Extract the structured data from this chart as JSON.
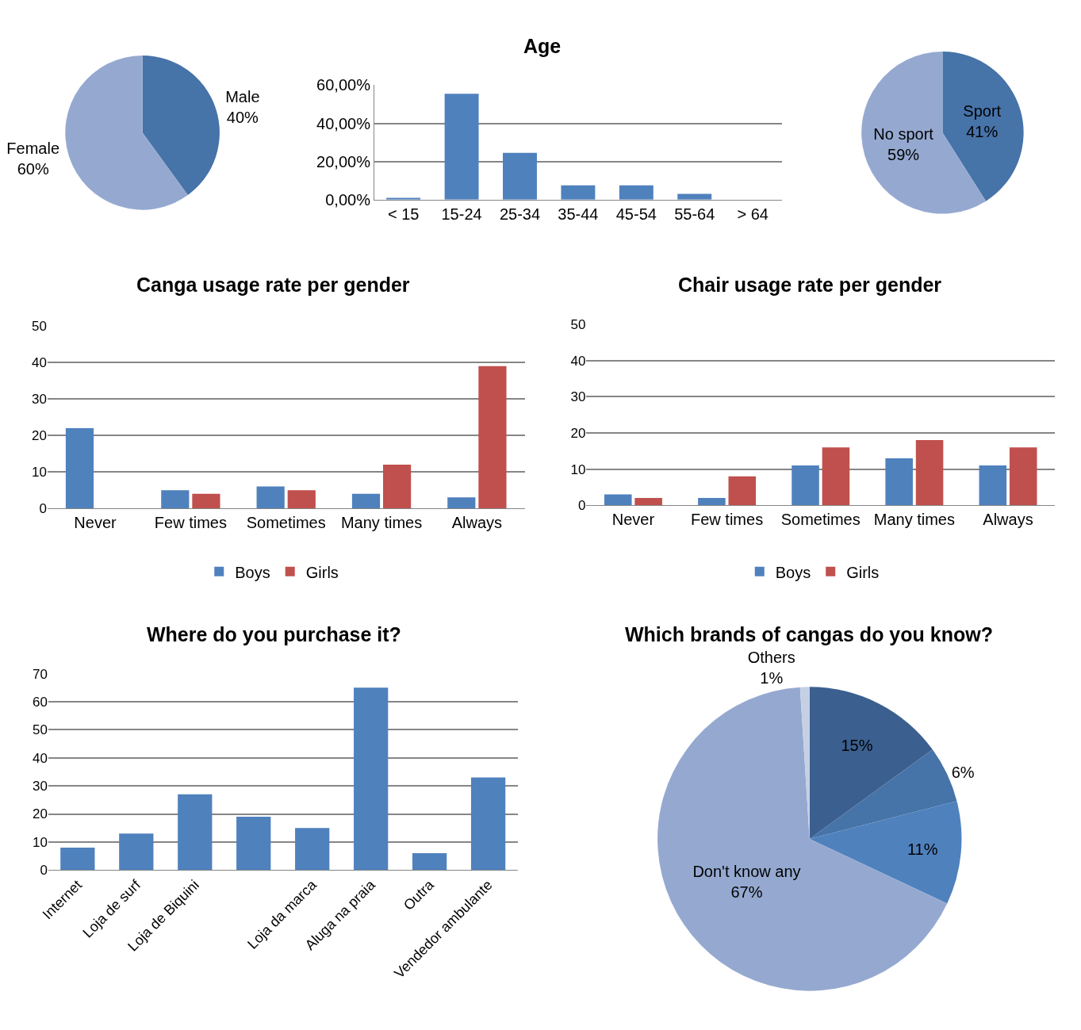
{
  "chart_data": [
    {
      "type": "pie",
      "categories": [
        "Male",
        "Female"
      ],
      "values": [
        40,
        60
      ],
      "colors": [
        "#4673a8",
        "#95a9d0"
      ],
      "value_labels": [
        "40%",
        "60%"
      ]
    },
    {
      "type": "bar",
      "title": "Age",
      "categories": [
        "< 15",
        "15-24",
        "25-34",
        "35-44",
        "45-54",
        "55-64",
        "> 64"
      ],
      "values": [
        1,
        55.5,
        24.5,
        7.5,
        7.5,
        3,
        0
      ],
      "color": "#4f81bd",
      "ylim": [
        0,
        60
      ],
      "yticks": [
        {
          "value": 0,
          "label": "0,00%"
        },
        {
          "value": 20,
          "label": "20,00%"
        },
        {
          "value": 40,
          "label": "40,00%"
        },
        {
          "value": 60,
          "label": "60,00%"
        }
      ],
      "grid": "y"
    },
    {
      "type": "pie",
      "categories": [
        "Sport",
        "No sport"
      ],
      "values": [
        41,
        59
      ],
      "colors": [
        "#4673a8",
        "#95a9d0"
      ],
      "value_labels": [
        "41%",
        "59%"
      ]
    },
    {
      "type": "bar",
      "title": "Canga usage rate per gender",
      "categories": [
        "Never",
        "Few times",
        "Sometimes",
        "Many times",
        "Always"
      ],
      "series": [
        {
          "name": "Boys",
          "color": "#4f81bd",
          "values": [
            22,
            5,
            6,
            4,
            3
          ]
        },
        {
          "name": "Girls",
          "color": "#c0504d",
          "values": [
            0,
            4,
            5,
            12,
            39
          ]
        }
      ],
      "ylim": [
        0,
        50
      ],
      "yticks": [
        0,
        10,
        20,
        30,
        40,
        50
      ],
      "grid": "y",
      "legend": "bottom"
    },
    {
      "type": "bar",
      "title": "Chair usage rate per gender",
      "categories": [
        "Never",
        "Few times",
        "Sometimes",
        "Many times",
        "Always"
      ],
      "series": [
        {
          "name": "Boys",
          "color": "#4f81bd",
          "values": [
            3,
            2,
            11,
            13,
            11
          ]
        },
        {
          "name": "Girls",
          "color": "#c0504d",
          "values": [
            2,
            8,
            16,
            18,
            16
          ]
        }
      ],
      "ylim": [
        0,
        50
      ],
      "yticks": [
        0,
        10,
        20,
        30,
        40,
        50
      ],
      "grid": "y",
      "legend": "bottom"
    },
    {
      "type": "bar",
      "title": "Where do you purchase it?",
      "categories": [
        "Internet",
        "Loja de surf",
        "Loja de Biquini",
        null,
        "Loja da marca",
        "Aluga na praia",
        "Outra",
        "Vendedor ambulante"
      ],
      "values": [
        8,
        13,
        27,
        19,
        15,
        65,
        6,
        33
      ],
      "color": "#4f81bd",
      "ylim": [
        0,
        70
      ],
      "yticks": [
        0,
        10,
        20,
        30,
        40,
        50,
        60,
        70
      ],
      "grid": "y"
    },
    {
      "type": "pie",
      "title": "Which brands of cangas do you know?",
      "categories": [
        null,
        null,
        null,
        "Don't know any",
        "Others"
      ],
      "values": [
        15,
        6,
        11,
        67,
        1
      ],
      "colors": [
        "#3b5f8f",
        "#4673a8",
        "#4f81bd",
        "#95a9d0",
        "#c6d0e4"
      ],
      "value_labels": [
        "15%",
        "6%",
        "11%",
        "67%",
        "1%"
      ]
    }
  ]
}
